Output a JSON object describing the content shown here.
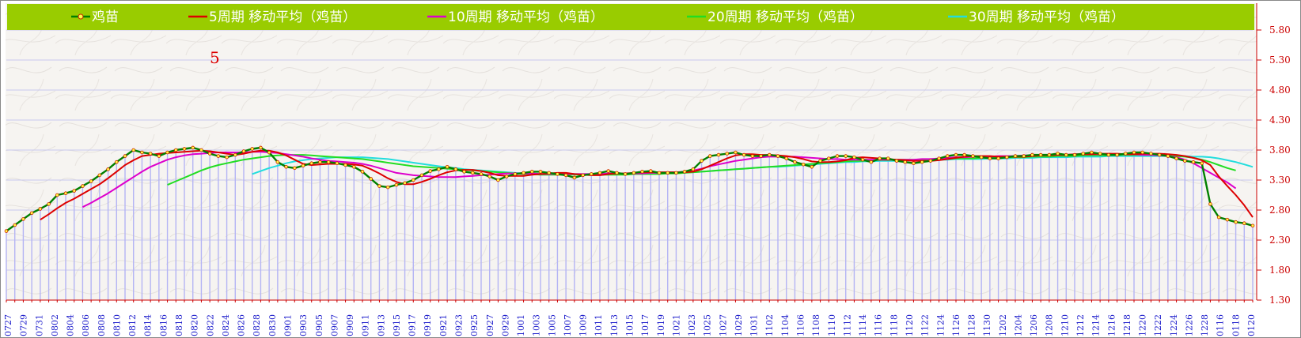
{
  "chart_data": {
    "type": "line",
    "title": "",
    "annotation": "5",
    "ylim": [
      1.3,
      5.8
    ],
    "y_ticks": [
      "5.80",
      "5.30",
      "4.80",
      "4.30",
      "3.80",
      "3.30",
      "2.80",
      "2.30",
      "1.80",
      "1.30"
    ],
    "x_tick_labels": [
      "0727",
      "0729",
      "0731",
      "0802",
      "0804",
      "0806",
      "0808",
      "0810",
      "0812",
      "0814",
      "0816",
      "0818",
      "0820",
      "0822",
      "0824",
      "0826",
      "0828",
      "0830",
      "0901",
      "0903",
      "0905",
      "0907",
      "0909",
      "0911",
      "0913",
      "0915",
      "0917",
      "0919",
      "0921",
      "0923",
      "0925",
      "0927",
      "0929",
      "1001",
      "1003",
      "1005",
      "1007",
      "1009",
      "1011",
      "1013",
      "1015",
      "1017",
      "1019",
      "1021",
      "1023",
      "1025",
      "1027",
      "1029",
      "1031",
      "1102",
      "1104",
      "1106",
      "1108",
      "1110",
      "1112",
      "1114",
      "1116",
      "1118",
      "1120",
      "1122",
      "1124",
      "1126",
      "1128",
      "1130",
      "1202",
      "1204",
      "1206",
      "1208",
      "1210",
      "1212",
      "1214",
      "1216",
      "1218",
      "1220",
      "1222",
      "1224",
      "1226",
      "1228",
      "0116",
      "0118",
      "0120"
    ],
    "series": [
      {
        "name": "鸡苗",
        "color": "#008000",
        "marker": true,
        "values": [
          2.45,
          2.55,
          2.65,
          2.75,
          2.82,
          2.9,
          3.05,
          3.08,
          3.12,
          3.2,
          3.28,
          3.38,
          3.48,
          3.6,
          3.7,
          3.8,
          3.76,
          3.74,
          3.7,
          3.76,
          3.8,
          3.82,
          3.84,
          3.8,
          3.74,
          3.7,
          3.68,
          3.72,
          3.78,
          3.82,
          3.84,
          3.76,
          3.6,
          3.52,
          3.5,
          3.54,
          3.58,
          3.6,
          3.6,
          3.58,
          3.55,
          3.52,
          3.44,
          3.32,
          3.2,
          3.18,
          3.22,
          3.25,
          3.3,
          3.38,
          3.45,
          3.48,
          3.52,
          3.48,
          3.44,
          3.42,
          3.4,
          3.36,
          3.3,
          3.36,
          3.4,
          3.42,
          3.44,
          3.44,
          3.42,
          3.4,
          3.38,
          3.34,
          3.38,
          3.4,
          3.42,
          3.45,
          3.42,
          3.4,
          3.42,
          3.44,
          3.45,
          3.42,
          3.42,
          3.42,
          3.44,
          3.48,
          3.62,
          3.7,
          3.72,
          3.74,
          3.76,
          3.72,
          3.7,
          3.7,
          3.72,
          3.7,
          3.66,
          3.6,
          3.56,
          3.52,
          3.62,
          3.66,
          3.7,
          3.7,
          3.68,
          3.64,
          3.6,
          3.66,
          3.66,
          3.62,
          3.6,
          3.58,
          3.6,
          3.62,
          3.66,
          3.7,
          3.72,
          3.72,
          3.7,
          3.68,
          3.66,
          3.66,
          3.68,
          3.7,
          3.7,
          3.72,
          3.72,
          3.72,
          3.74,
          3.72,
          3.72,
          3.74,
          3.76,
          3.74,
          3.72,
          3.72,
          3.74,
          3.76,
          3.76,
          3.74,
          3.72,
          3.7,
          3.66,
          3.62,
          3.6,
          3.58,
          2.9,
          2.68,
          2.64,
          2.6,
          2.58,
          2.54
        ]
      },
      {
        "name": "5周期 移动平均（鸡苗）",
        "color": "#dd0000",
        "marker": false,
        "values": [
          null,
          null,
          null,
          null,
          2.64,
          2.73,
          2.83,
          2.92,
          2.99,
          3.07,
          3.15,
          3.23,
          3.33,
          3.44,
          3.55,
          3.63,
          3.7,
          3.72,
          3.74,
          3.75,
          3.76,
          3.77,
          3.78,
          3.79,
          3.78,
          3.76,
          3.74,
          3.72,
          3.74,
          3.77,
          3.79,
          3.79,
          3.76,
          3.71,
          3.64,
          3.57,
          3.55,
          3.56,
          3.57,
          3.57,
          3.57,
          3.56,
          3.54,
          3.48,
          3.41,
          3.33,
          3.27,
          3.23,
          3.23,
          3.27,
          3.32,
          3.38,
          3.43,
          3.46,
          3.47,
          3.47,
          3.45,
          3.42,
          3.38,
          3.37,
          3.37,
          3.37,
          3.39,
          3.4,
          3.41,
          3.42,
          3.42,
          3.4,
          3.39,
          3.38,
          3.38,
          3.4,
          3.41,
          3.41,
          3.42,
          3.43,
          3.43,
          3.43,
          3.43,
          3.43,
          3.43,
          3.44,
          3.48,
          3.54,
          3.6,
          3.66,
          3.71,
          3.73,
          3.73,
          3.72,
          3.72,
          3.71,
          3.7,
          3.68,
          3.65,
          3.61,
          3.6,
          3.6,
          3.61,
          3.63,
          3.67,
          3.68,
          3.67,
          3.66,
          3.65,
          3.64,
          3.63,
          3.62,
          3.62,
          3.62,
          3.63,
          3.65,
          3.67,
          3.69,
          3.7,
          3.7,
          3.7,
          3.69,
          3.69,
          3.69,
          3.69,
          3.7,
          3.71,
          3.71,
          3.72,
          3.72,
          3.73,
          3.73,
          3.73,
          3.74,
          3.74,
          3.74,
          3.73,
          3.73,
          3.74,
          3.74,
          3.74,
          3.73,
          3.72,
          3.7,
          3.67,
          3.63,
          3.55,
          3.36,
          3.2,
          3.05,
          2.88,
          2.68
        ]
      },
      {
        "name": "10周期 移动平均（鸡苗）",
        "color": "#dd00cc",
        "marker": false,
        "values": [
          null,
          null,
          null,
          null,
          null,
          null,
          null,
          null,
          null,
          2.85,
          2.92,
          3.0,
          3.08,
          3.17,
          3.26,
          3.35,
          3.44,
          3.52,
          3.58,
          3.64,
          3.68,
          3.71,
          3.73,
          3.74,
          3.75,
          3.76,
          3.76,
          3.76,
          3.76,
          3.77,
          3.77,
          3.76,
          3.75,
          3.73,
          3.71,
          3.69,
          3.66,
          3.64,
          3.62,
          3.61,
          3.6,
          3.59,
          3.57,
          3.54,
          3.5,
          3.46,
          3.42,
          3.4,
          3.38,
          3.37,
          3.36,
          3.35,
          3.35,
          3.35,
          3.36,
          3.37,
          3.38,
          3.39,
          3.4,
          3.41,
          3.41,
          3.41,
          3.41,
          3.4,
          3.4,
          3.4,
          3.4,
          3.4,
          3.4,
          3.4,
          3.4,
          3.41,
          3.41,
          3.41,
          3.41,
          3.41,
          3.42,
          3.42,
          3.43,
          3.43,
          3.44,
          3.46,
          3.49,
          3.53,
          3.56,
          3.59,
          3.62,
          3.64,
          3.66,
          3.68,
          3.69,
          3.69,
          3.69,
          3.69,
          3.68,
          3.67,
          3.66,
          3.65,
          3.65,
          3.64,
          3.64,
          3.64,
          3.64,
          3.64,
          3.64,
          3.64,
          3.64,
          3.64,
          3.65,
          3.65,
          3.66,
          3.67,
          3.68,
          3.68,
          3.69,
          3.69,
          3.69,
          3.7,
          3.7,
          3.7,
          3.71,
          3.71,
          3.71,
          3.72,
          3.72,
          3.72,
          3.73,
          3.73,
          3.73,
          3.73,
          3.73,
          3.73,
          3.73,
          3.73,
          3.72,
          3.72,
          3.71,
          3.7,
          3.68,
          3.64,
          3.58,
          3.5,
          3.42,
          3.34,
          3.26,
          3.16
        ]
      },
      {
        "name": "20周期 移动平均（鸡苗）",
        "color": "#22dd22",
        "marker": false,
        "values": [
          null,
          null,
          null,
          null,
          null,
          null,
          null,
          null,
          null,
          null,
          null,
          null,
          null,
          null,
          null,
          null,
          null,
          null,
          null,
          3.22,
          3.28,
          3.34,
          3.4,
          3.46,
          3.51,
          3.55,
          3.58,
          3.61,
          3.64,
          3.66,
          3.68,
          3.7,
          3.71,
          3.72,
          3.72,
          3.72,
          3.71,
          3.7,
          3.69,
          3.68,
          3.67,
          3.66,
          3.65,
          3.63,
          3.61,
          3.59,
          3.57,
          3.55,
          3.53,
          3.52,
          3.51,
          3.5,
          3.49,
          3.48,
          3.47,
          3.46,
          3.45,
          3.44,
          3.43,
          3.42,
          3.41,
          3.4,
          3.4,
          3.39,
          3.39,
          3.39,
          3.39,
          3.39,
          3.39,
          3.39,
          3.39,
          3.39,
          3.39,
          3.39,
          3.4,
          3.4,
          3.4,
          3.4,
          3.41,
          3.41,
          3.42,
          3.43,
          3.44,
          3.45,
          3.46,
          3.47,
          3.48,
          3.49,
          3.5,
          3.51,
          3.52,
          3.53,
          3.54,
          3.55,
          3.56,
          3.57,
          3.58,
          3.59,
          3.6,
          3.61,
          3.62,
          3.62,
          3.63,
          3.63,
          3.63,
          3.64,
          3.64,
          3.64,
          3.64,
          3.65,
          3.65,
          3.65,
          3.66,
          3.66,
          3.66,
          3.67,
          3.67,
          3.67,
          3.68,
          3.68,
          3.68,
          3.69,
          3.69,
          3.69,
          3.7,
          3.7,
          3.7,
          3.71,
          3.71,
          3.71,
          3.71,
          3.72,
          3.72,
          3.72,
          3.72,
          3.72,
          3.72,
          3.71,
          3.7,
          3.69,
          3.67,
          3.64,
          3.6,
          3.55,
          3.5,
          3.46
        ]
      },
      {
        "name": "30周期 移动平均（鸡苗）",
        "color": "#22dddd",
        "marker": false,
        "values": [
          null,
          null,
          null,
          null,
          null,
          null,
          null,
          null,
          null,
          null,
          null,
          null,
          null,
          null,
          null,
          null,
          null,
          null,
          null,
          null,
          null,
          null,
          null,
          null,
          null,
          null,
          null,
          null,
          null,
          3.4,
          3.45,
          3.5,
          3.54,
          3.58,
          3.61,
          3.63,
          3.65,
          3.66,
          3.67,
          3.68,
          3.68,
          3.68,
          3.68,
          3.67,
          3.66,
          3.65,
          3.63,
          3.61,
          3.59,
          3.57,
          3.55,
          3.53,
          3.51,
          3.5,
          3.48,
          3.47,
          3.46,
          3.45,
          3.44,
          3.43,
          3.42,
          3.41,
          3.41,
          3.4,
          3.4,
          3.4,
          3.4,
          3.4,
          3.4,
          3.4,
          3.4,
          3.4,
          3.4,
          3.4,
          3.4,
          3.41,
          3.41,
          3.41,
          3.42,
          3.42,
          3.43,
          3.43,
          3.44,
          3.45,
          3.46,
          3.47,
          3.48,
          3.49,
          3.5,
          3.51,
          3.52,
          3.52,
          3.53,
          3.54,
          3.55,
          3.56,
          3.57,
          3.58,
          3.59,
          3.6,
          3.6,
          3.61,
          3.61,
          3.62,
          3.62,
          3.62,
          3.63,
          3.63,
          3.63,
          3.64,
          3.64,
          3.64,
          3.65,
          3.65,
          3.65,
          3.65,
          3.66,
          3.66,
          3.66,
          3.67,
          3.67,
          3.67,
          3.68,
          3.68,
          3.68,
          3.68,
          3.69,
          3.69,
          3.69,
          3.69,
          3.7,
          3.7,
          3.7,
          3.7,
          3.7,
          3.7,
          3.7,
          3.7,
          3.7,
          3.7,
          3.69,
          3.69,
          3.68,
          3.66,
          3.63,
          3.6,
          3.56,
          3.52
        ]
      }
    ]
  }
}
